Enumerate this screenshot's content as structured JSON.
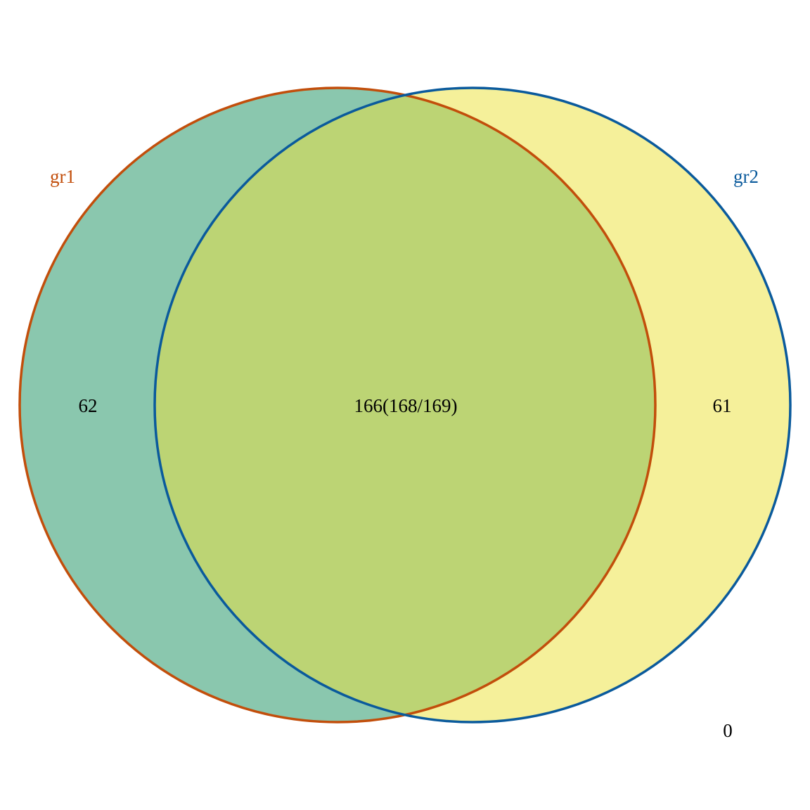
{
  "sets": [
    {
      "name": "gr1",
      "color": "#C24E0B",
      "fill": "#8AC7AE"
    },
    {
      "name": "gr2",
      "color": "#0A5A9C",
      "fill": "#F5F09A"
    }
  ],
  "overlap_fill": "#BCD474",
  "counts": {
    "gr1_only": "62",
    "intersection": "166(168/169)",
    "gr2_only": "61",
    "outside": "0"
  }
}
